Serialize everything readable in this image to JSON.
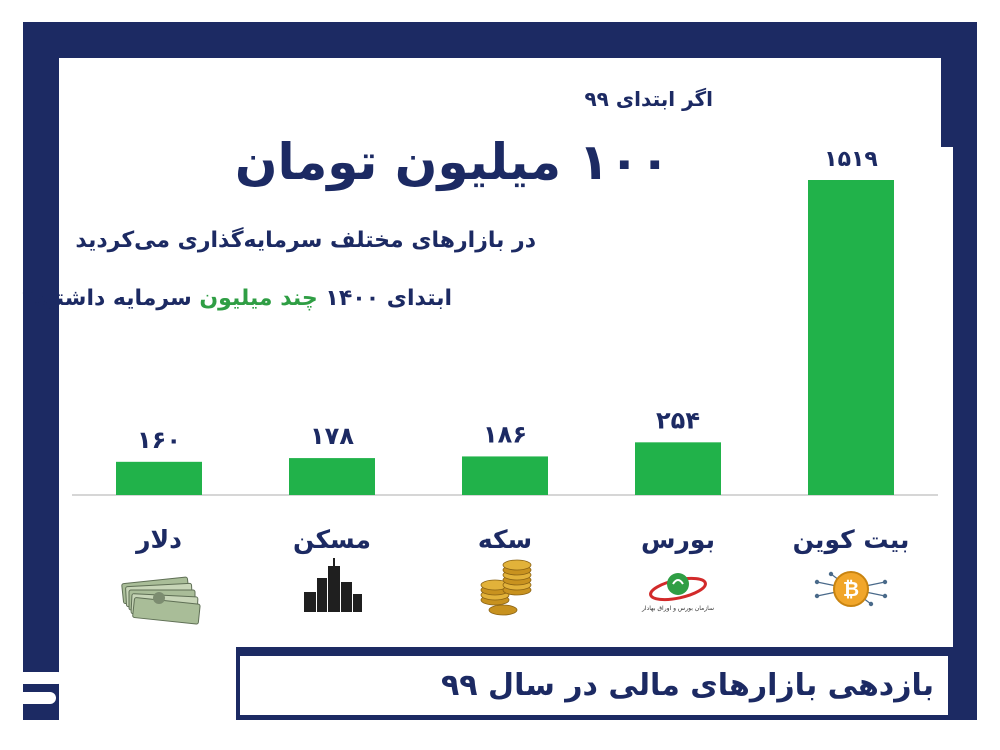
{
  "header": {
    "intro": "اگر ابتدای ۹۹",
    "headline": "۱۰۰ میلیون تومان",
    "line1": "در بازارهای مختلف سرمایه‌گذاری می‌کردید",
    "line2_start": "ابتدای ۱۴۰۰ ",
    "line2_highlight": "چند میلیون",
    "line2_end": " سرمایه داشتید؟"
  },
  "footer": {
    "title": "بازدهی بازارهای مالی در سال ۹۹"
  },
  "colors": {
    "navy": "#1c2a63",
    "bar": "#21b24a",
    "highlight": "#2f9e44"
  },
  "chart_data": {
    "type": "bar",
    "categories": [
      "دلار",
      "مسکن",
      "سکه",
      "بورس",
      "بیت کوین"
    ],
    "values": [
      160,
      178,
      186,
      254,
      1519
    ],
    "value_labels": [
      "۱۶۰",
      "۱۷۸",
      "۱۸۶",
      "۲۵۴",
      "۱۵۱۹"
    ],
    "icons": [
      "dollar-bills-icon",
      "buildings-icon",
      "gold-coins-icon",
      "stock-exchange-logo-icon",
      "bitcoin-icon"
    ],
    "icon_caption": "سازمان بورس و اوراق بهادار",
    "ylim": [
      0,
      1519
    ],
    "title": "",
    "xlabel": "",
    "ylabel": ""
  }
}
